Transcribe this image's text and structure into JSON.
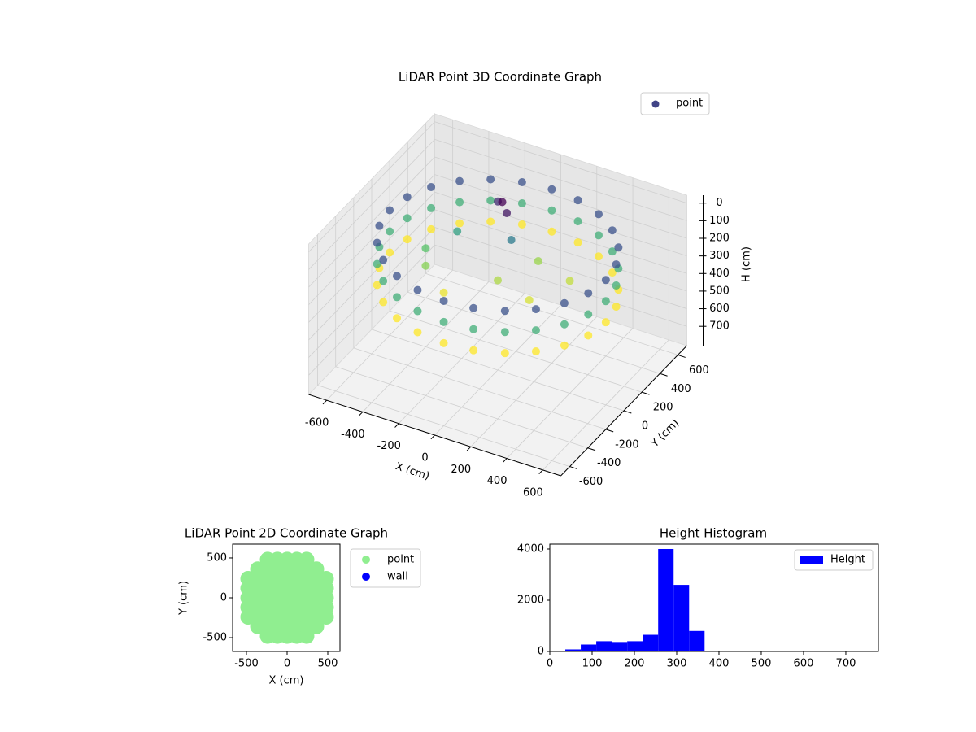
{
  "chart_data": [
    {
      "type": "scatter3d",
      "title": "LiDAR Point 3D Coordinate Graph",
      "xlabel": "X (cm)",
      "ylabel": "Y (cm)",
      "zlabel": "H (cm)",
      "xlim": [
        -700,
        700
      ],
      "ylim": [
        -700,
        700
      ],
      "zlim": [
        810,
        -45
      ],
      "xticks": [
        -600,
        -400,
        -200,
        0,
        200,
        400,
        600
      ],
      "yticks": [
        -600,
        -400,
        -200,
        0,
        200,
        400,
        600
      ],
      "zticks": [
        0,
        100,
        200,
        300,
        400,
        500,
        600,
        700
      ],
      "colormap": "viridis",
      "grid": true,
      "legend": "upper right",
      "series": [
        {
          "name": "point",
          "color": "#414487",
          "x": [
            600,
            600,
            600,
            580,
            580,
            580,
            520,
            520,
            520,
            424,
            424,
            424,
            300,
            300,
            300,
            155,
            155,
            155,
            0,
            0,
            0,
            -155,
            -155,
            -155,
            -300,
            -300,
            -300,
            -424,
            -424,
            -424,
            -520,
            -520,
            -520,
            -580,
            -580,
            -580,
            -600,
            -600,
            -600,
            -580,
            -580,
            -580,
            -520,
            -520,
            -520,
            -424,
            -424,
            -424,
            -300,
            -300,
            -300,
            -155,
            -155,
            -155,
            0,
            0,
            0,
            155,
            155,
            155,
            300,
            300,
            300,
            424,
            424,
            424,
            520,
            520,
            520,
            580,
            580,
            580,
            -100,
            -50,
            -150,
            0,
            -300,
            -400,
            -350,
            0,
            200,
            100,
            300,
            -200
          ],
          "y": [
            0,
            0,
            0,
            155,
            155,
            155,
            300,
            300,
            300,
            424,
            424,
            424,
            520,
            520,
            520,
            580,
            580,
            580,
            600,
            600,
            600,
            580,
            580,
            580,
            520,
            520,
            520,
            424,
            424,
            424,
            300,
            300,
            300,
            155,
            155,
            155,
            0,
            0,
            0,
            -155,
            -155,
            -155,
            -300,
            -300,
            -300,
            -424,
            -424,
            -424,
            -520,
            -520,
            -520,
            -580,
            -580,
            -580,
            -600,
            -600,
            -600,
            -580,
            -580,
            -580,
            -520,
            -520,
            -520,
            -424,
            -424,
            -424,
            -300,
            -300,
            -300,
            -155,
            -155,
            -155,
            250,
            200,
            300,
            150,
            150,
            0,
            -100,
            0,
            -50,
            250,
            200,
            -200
          ],
          "z": [
            100,
            220,
            340,
            100,
            220,
            340,
            100,
            220,
            340,
            100,
            220,
            340,
            100,
            220,
            340,
            100,
            220,
            340,
            100,
            220,
            340,
            100,
            220,
            340,
            100,
            220,
            340,
            100,
            220,
            340,
            100,
            220,
            340,
            100,
            220,
            340,
            100,
            220,
            340,
            100,
            220,
            340,
            100,
            220,
            340,
            100,
            220,
            340,
            100,
            220,
            340,
            100,
            220,
            340,
            100,
            220,
            340,
            100,
            220,
            340,
            100,
            220,
            340,
            100,
            220,
            340,
            100,
            220,
            340,
            100,
            220,
            340,
            20,
            40,
            60,
            150,
            200,
            250,
            280,
            300,
            320,
            290,
            310,
            330
          ]
        }
      ]
    },
    {
      "type": "scatter",
      "title": "LiDAR Point 2D Coordinate Graph",
      "xlabel": "X (cm)",
      "ylabel": "Y (cm)",
      "xlim": [
        -670,
        650
      ],
      "ylim": [
        -673,
        673
      ],
      "xticks": [
        -500,
        0,
        500
      ],
      "yticks": [
        -500,
        0,
        500
      ],
      "legend": "outside",
      "series": [
        {
          "name": "point",
          "color": "#90ee90",
          "x": [
            -480,
            -480,
            -480,
            -480,
            -480,
            -360,
            -360,
            -360,
            -360,
            -360,
            -360,
            -360,
            -240,
            -240,
            -240,
            -240,
            -240,
            -240,
            -240,
            -240,
            -240,
            -120,
            -120,
            -120,
            -120,
            -120,
            -120,
            -120,
            -120,
            -120,
            0,
            0,
            0,
            0,
            0,
            0,
            0,
            0,
            0,
            120,
            120,
            120,
            120,
            120,
            120,
            120,
            120,
            120,
            240,
            240,
            240,
            240,
            240,
            240,
            240,
            240,
            240,
            360,
            360,
            360,
            360,
            360,
            360,
            360,
            480,
            480,
            480,
            480,
            480
          ],
          "y": [
            -240,
            -120,
            0,
            120,
            240,
            -360,
            -240,
            -120,
            0,
            120,
            240,
            360,
            -480,
            -360,
            -240,
            -120,
            0,
            120,
            240,
            360,
            480,
            -480,
            -360,
            -240,
            -120,
            0,
            120,
            240,
            360,
            480,
            -480,
            -360,
            -240,
            -120,
            0,
            120,
            240,
            360,
            480,
            -480,
            -360,
            -240,
            -120,
            0,
            120,
            240,
            360,
            480,
            -480,
            -360,
            -240,
            -120,
            0,
            120,
            240,
            360,
            480,
            -360,
            -240,
            -120,
            0,
            120,
            240,
            360,
            -240,
            -120,
            0,
            120,
            240
          ]
        },
        {
          "name": "wall",
          "color": "#0000ff",
          "x": [],
          "y": []
        }
      ]
    },
    {
      "type": "histogram",
      "title": "Height Histogram",
      "bins": [
        0,
        36.6,
        73.2,
        109.8,
        146.4,
        183,
        219.6,
        256.2,
        292.8,
        329.4,
        366,
        402.6,
        439.2,
        475.8,
        512.4,
        549,
        585.6,
        622.2,
        658.8,
        695.4,
        732
      ],
      "xlim": [
        0,
        777
      ],
      "ylim": [
        0,
        4190
      ],
      "xticks": [
        0,
        100,
        200,
        300,
        400,
        500,
        600,
        700
      ],
      "yticks": [
        0,
        2000,
        4000
      ],
      "legend": "upper right",
      "series": [
        {
          "name": "Height",
          "color": "#0000ff",
          "values": [
            20,
            80,
            270,
            400,
            370,
            400,
            650,
            4000,
            2600,
            800,
            0,
            0,
            0,
            0,
            0,
            0,
            0,
            0,
            0,
            0
          ]
        }
      ]
    }
  ]
}
